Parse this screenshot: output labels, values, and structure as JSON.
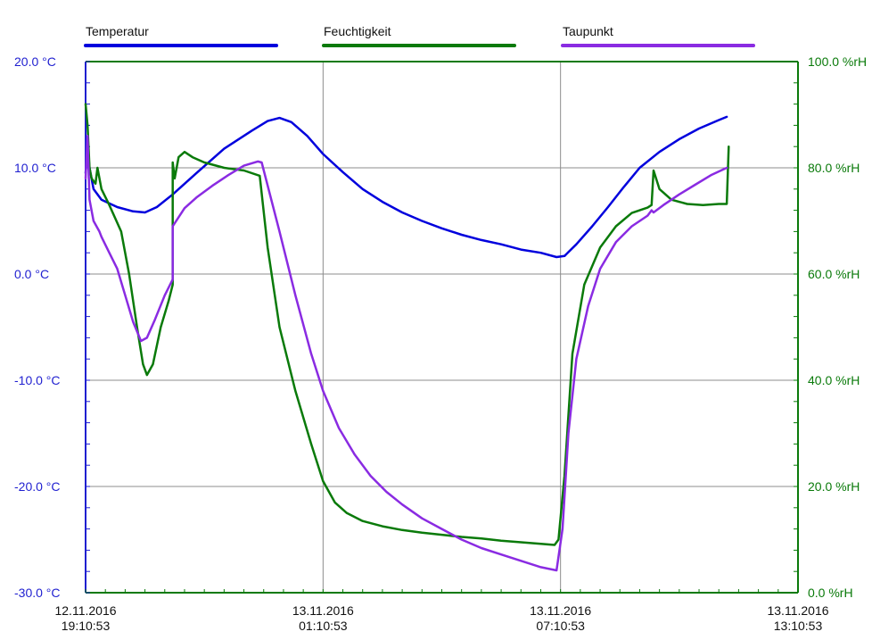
{
  "chart_data": {
    "type": "line",
    "x_ticks": [
      {
        "date": "12.11.2016",
        "time": "19:10:53"
      },
      {
        "date": "13.11.2016",
        "time": "01:10:53"
      },
      {
        "date": "13.11.2016",
        "time": "07:10:53"
      },
      {
        "date": "13.11.2016",
        "time": "13:10:53"
      }
    ],
    "x_range_hours": [
      0,
      18
    ],
    "y_left": {
      "range": [
        -30,
        20
      ],
      "ticks": [
        20,
        10,
        0,
        -10,
        -20,
        -30
      ],
      "tick_labels": [
        "20.0 °C",
        "10.0 °C",
        "0.0 °C",
        "-10.0 °C",
        "-20.0 °C",
        "-30.0 °C"
      ],
      "color": "#1f1fd0"
    },
    "y_right": {
      "range": [
        0,
        100
      ],
      "ticks": [
        100,
        80,
        60,
        40,
        20,
        0
      ],
      "tick_labels": [
        "100.0 %rH",
        "80.0 %rH",
        "60.0 %rH",
        "40.0 %rH",
        "20.0 %rH",
        "0.0 %rH"
      ],
      "color": "#0a7a0a"
    },
    "grid": true,
    "legend_position": "top",
    "series": [
      {
        "name": "Temperatur",
        "axis": "left",
        "color": "#0000dd",
        "points": [
          [
            0.0,
            9.5
          ],
          [
            0.05,
            12.0
          ],
          [
            0.1,
            10.0
          ],
          [
            0.2,
            8.0
          ],
          [
            0.4,
            7.0
          ],
          [
            0.8,
            6.3
          ],
          [
            1.2,
            5.9
          ],
          [
            1.5,
            5.8
          ],
          [
            1.8,
            6.3
          ],
          [
            2.2,
            7.5
          ],
          [
            2.8,
            9.5
          ],
          [
            3.5,
            11.8
          ],
          [
            4.2,
            13.5
          ],
          [
            4.6,
            14.4
          ],
          [
            4.9,
            14.7
          ],
          [
            5.2,
            14.3
          ],
          [
            5.6,
            13.0
          ],
          [
            6.0,
            11.3
          ],
          [
            6.5,
            9.6
          ],
          [
            7.0,
            8.0
          ],
          [
            7.5,
            6.8
          ],
          [
            8.0,
            5.8
          ],
          [
            8.5,
            5.0
          ],
          [
            9.0,
            4.3
          ],
          [
            9.5,
            3.7
          ],
          [
            10.0,
            3.2
          ],
          [
            10.5,
            2.8
          ],
          [
            11.0,
            2.3
          ],
          [
            11.5,
            2.0
          ],
          [
            11.9,
            1.6
          ],
          [
            12.1,
            1.7
          ],
          [
            12.4,
            2.8
          ],
          [
            12.8,
            4.5
          ],
          [
            13.2,
            6.3
          ],
          [
            13.6,
            8.2
          ],
          [
            14.0,
            10.0
          ],
          [
            14.5,
            11.5
          ],
          [
            15.0,
            12.7
          ],
          [
            15.5,
            13.7
          ],
          [
            16.0,
            14.5
          ],
          [
            16.2,
            14.8
          ]
        ]
      },
      {
        "name": "Feuchtigkeit",
        "axis": "right",
        "color": "#0a7a0a",
        "points": [
          [
            0.0,
            92.0
          ],
          [
            0.05,
            88.0
          ],
          [
            0.1,
            80.0
          ],
          [
            0.15,
            78.0
          ],
          [
            0.25,
            77.0
          ],
          [
            0.3,
            80.0
          ],
          [
            0.4,
            76.0
          ],
          [
            0.6,
            73.0
          ],
          [
            0.9,
            68.0
          ],
          [
            1.1,
            60.0
          ],
          [
            1.3,
            50.0
          ],
          [
            1.45,
            43.0
          ],
          [
            1.55,
            41.0
          ],
          [
            1.7,
            43.0
          ],
          [
            1.9,
            50.0
          ],
          [
            2.1,
            55.0
          ],
          [
            2.2,
            58.0
          ],
          [
            2.2,
            81.0
          ],
          [
            2.25,
            78.0
          ],
          [
            2.35,
            82.0
          ],
          [
            2.5,
            83.0
          ],
          [
            2.7,
            82.0
          ],
          [
            3.0,
            81.0
          ],
          [
            3.5,
            80.0
          ],
          [
            4.0,
            79.5
          ],
          [
            4.4,
            78.5
          ],
          [
            4.6,
            65.0
          ],
          [
            4.9,
            50.0
          ],
          [
            5.3,
            38.0
          ],
          [
            5.7,
            28.0
          ],
          [
            6.0,
            21.0
          ],
          [
            6.3,
            17.0
          ],
          [
            6.6,
            15.0
          ],
          [
            7.0,
            13.5
          ],
          [
            7.5,
            12.5
          ],
          [
            8.0,
            11.8
          ],
          [
            8.5,
            11.3
          ],
          [
            9.0,
            10.9
          ],
          [
            9.5,
            10.5
          ],
          [
            10.0,
            10.2
          ],
          [
            10.5,
            9.8
          ],
          [
            11.0,
            9.5
          ],
          [
            11.5,
            9.2
          ],
          [
            11.85,
            9.0
          ],
          [
            11.95,
            10.0
          ],
          [
            12.1,
            22.0
          ],
          [
            12.3,
            45.0
          ],
          [
            12.6,
            58.0
          ],
          [
            13.0,
            65.0
          ],
          [
            13.4,
            69.0
          ],
          [
            13.8,
            71.5
          ],
          [
            14.2,
            72.5
          ],
          [
            14.3,
            73.0
          ],
          [
            14.35,
            79.5
          ],
          [
            14.5,
            76.0
          ],
          [
            14.8,
            74.0
          ],
          [
            15.2,
            73.2
          ],
          [
            15.6,
            73.0
          ],
          [
            16.0,
            73.2
          ],
          [
            16.2,
            73.2
          ],
          [
            16.25,
            84.0
          ]
        ]
      },
      {
        "name": "Taupunkt",
        "axis": "left",
        "color": "#8a2be2",
        "points": [
          [
            0.0,
            9.0
          ],
          [
            0.05,
            13.0
          ],
          [
            0.1,
            7.0
          ],
          [
            0.2,
            5.0
          ],
          [
            0.35,
            4.0
          ],
          [
            0.4,
            3.5
          ],
          [
            0.6,
            2.0
          ],
          [
            0.8,
            0.5
          ],
          [
            1.0,
            -2.0
          ],
          [
            1.2,
            -4.5
          ],
          [
            1.4,
            -6.3
          ],
          [
            1.55,
            -6.0
          ],
          [
            1.75,
            -4.3
          ],
          [
            2.0,
            -2.0
          ],
          [
            2.2,
            -0.5
          ],
          [
            2.2,
            4.5
          ],
          [
            2.5,
            6.2
          ],
          [
            2.8,
            7.2
          ],
          [
            3.2,
            8.3
          ],
          [
            3.6,
            9.3
          ],
          [
            4.0,
            10.2
          ],
          [
            4.35,
            10.6
          ],
          [
            4.45,
            10.5
          ],
          [
            4.9,
            4.0
          ],
          [
            5.3,
            -2.0
          ],
          [
            5.7,
            -7.5
          ],
          [
            6.0,
            -11.0
          ],
          [
            6.4,
            -14.5
          ],
          [
            6.8,
            -17.0
          ],
          [
            7.2,
            -19.0
          ],
          [
            7.6,
            -20.5
          ],
          [
            8.0,
            -21.7
          ],
          [
            8.5,
            -23.0
          ],
          [
            9.0,
            -24.0
          ],
          [
            9.5,
            -25.0
          ],
          [
            10.0,
            -25.8
          ],
          [
            10.5,
            -26.4
          ],
          [
            11.0,
            -27.0
          ],
          [
            11.5,
            -27.6
          ],
          [
            11.9,
            -27.9
          ],
          [
            12.05,
            -24.0
          ],
          [
            12.2,
            -15.0
          ],
          [
            12.4,
            -8.0
          ],
          [
            12.7,
            -3.0
          ],
          [
            13.0,
            0.5
          ],
          [
            13.4,
            3.0
          ],
          [
            13.8,
            4.5
          ],
          [
            14.2,
            5.5
          ],
          [
            14.3,
            6.0
          ],
          [
            14.35,
            5.8
          ],
          [
            14.6,
            6.5
          ],
          [
            15.0,
            7.5
          ],
          [
            15.4,
            8.4
          ],
          [
            15.8,
            9.3
          ],
          [
            16.2,
            10.0
          ]
        ]
      }
    ]
  }
}
